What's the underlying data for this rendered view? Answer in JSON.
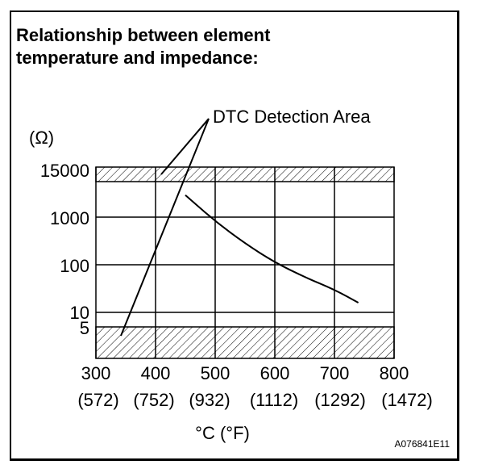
{
  "chart_data": {
    "type": "line",
    "title": "Relationship between element temperature and impedance:",
    "title_lines": [
      "Relationship between element",
      "temperature and impedance:"
    ],
    "ylabel": "(Ω)",
    "xlabel": "°C (°F)",
    "x_ticks": [
      "300",
      "400",
      "500",
      "600",
      "700",
      "800"
    ],
    "x_ticks_f": [
      "(572)",
      "(752)",
      "(932)",
      "(1112)",
      "(1292)",
      "(1472)"
    ],
    "y_ticks": [
      "15000",
      "1000",
      "100",
      "10",
      "5"
    ],
    "xlim": [
      300,
      800
    ],
    "yscale": "log",
    "annotation": "DTC Detection Area",
    "detection_areas": [
      {
        "name": "upper",
        "range": [
          ">15000 Ω"
        ]
      },
      {
        "name": "lower",
        "range": [
          "<5 Ω"
        ]
      }
    ],
    "series": [
      {
        "name": "impedance",
        "x": [
          450,
          500,
          550,
          600,
          650,
          700,
          740
        ],
        "y": [
          2900,
          820,
          280,
          112,
          55,
          30,
          16
        ]
      }
    ],
    "figure_id": "A076841E11"
  }
}
